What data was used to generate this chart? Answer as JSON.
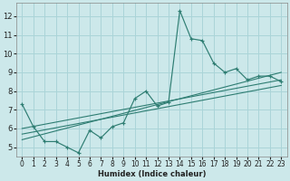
{
  "xlabel": "Humidex (Indice chaleur)",
  "bg_color": "#cce8ea",
  "grid_color": "#aad4d8",
  "line_color": "#2e7d72",
  "xlim": [
    -0.5,
    23.5
  ],
  "ylim": [
    4.5,
    12.7
  ],
  "xticks": [
    0,
    1,
    2,
    3,
    4,
    5,
    6,
    7,
    8,
    9,
    10,
    11,
    12,
    13,
    14,
    15,
    16,
    17,
    18,
    19,
    20,
    21,
    22,
    23
  ],
  "yticks": [
    5,
    6,
    7,
    8,
    9,
    10,
    11,
    12
  ],
  "series": [
    [
      0,
      7.3
    ],
    [
      1,
      6.1
    ],
    [
      2,
      5.3
    ],
    [
      3,
      5.3
    ],
    [
      4,
      5.0
    ],
    [
      5,
      4.7
    ],
    [
      6,
      5.9
    ],
    [
      7,
      5.5
    ],
    [
      8,
      6.1
    ],
    [
      9,
      6.3
    ],
    [
      10,
      7.6
    ],
    [
      11,
      8.0
    ],
    [
      12,
      7.2
    ],
    [
      13,
      7.4
    ],
    [
      14,
      12.3
    ],
    [
      15,
      10.8
    ],
    [
      16,
      10.7
    ],
    [
      17,
      9.5
    ],
    [
      18,
      9.0
    ],
    [
      19,
      9.2
    ],
    [
      20,
      8.6
    ],
    [
      21,
      8.8
    ],
    [
      22,
      8.8
    ],
    [
      23,
      8.5
    ]
  ],
  "trend1_x": [
    0,
    23
  ],
  "trend1_y": [
    6.0,
    8.6
  ],
  "trend2_x": [
    0,
    23
  ],
  "trend2_y": [
    5.7,
    8.3
  ],
  "trend3_x": [
    0,
    23
  ],
  "trend3_y": [
    5.4,
    9.0
  ],
  "xlabel_fontsize": 6.0,
  "tick_fontsize": 5.5
}
